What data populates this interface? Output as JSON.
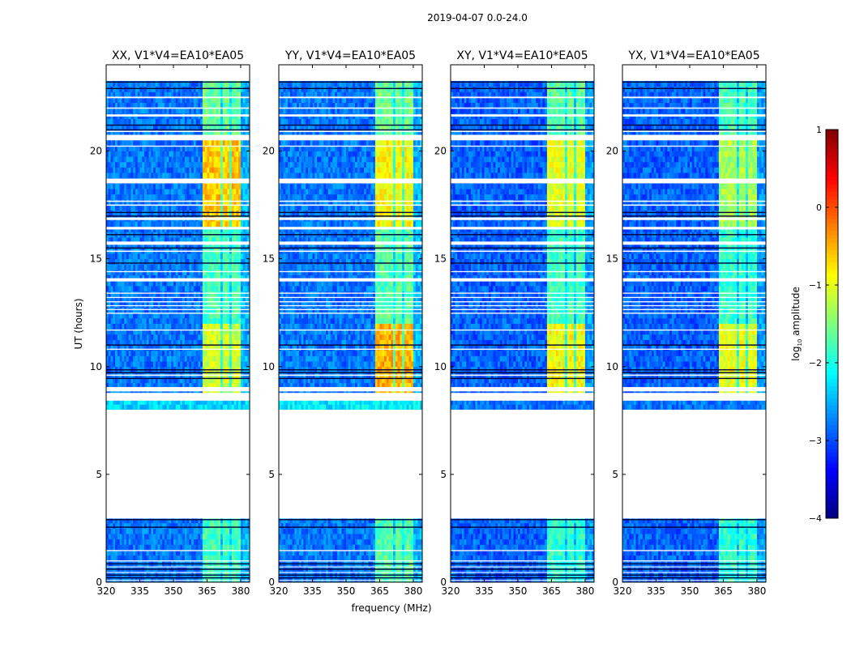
{
  "chart_data": {
    "type": "heatmap",
    "title": "2019-04-07 0.0-24.0",
    "xlabel": "frequency (MHz)",
    "ylabel": "UT (hours)",
    "colorbar_label_main": "log",
    "colorbar_label_sub": "10",
    "colorbar_label_tail": " amplitude",
    "colormap": "jet",
    "clim": [
      -4,
      1
    ],
    "colorbar_ticks": [
      1,
      0,
      -1,
      -2,
      -3,
      -4
    ],
    "colorbar_tick_labels": [
      "1",
      "0",
      "−1",
      "−2",
      "−3",
      "−4"
    ],
    "xlim": [
      320,
      384
    ],
    "ylim": [
      0,
      24
    ],
    "x_ticks": [
      320,
      335,
      350,
      365,
      380
    ],
    "x_tick_labels": [
      "320",
      "335",
      "350",
      "365",
      "380"
    ],
    "y_ticks": [
      0,
      5,
      10,
      15,
      20
    ],
    "y_tick_labels": [
      "0",
      "5",
      "10",
      "15",
      "20"
    ],
    "bright_subbands_mhz": [
      [
        363.5,
        367.0
      ],
      [
        367.5,
        371.2
      ],
      [
        371.8,
        375.3
      ],
      [
        375.8,
        380.5
      ]
    ],
    "flagged_time_ranges_white": [
      [
        2.95,
        8.0
      ],
      [
        8.42,
        8.78
      ],
      [
        8.85,
        9.05
      ],
      [
        20.5,
        20.75
      ],
      [
        23.35,
        24.0
      ],
      [
        22.45,
        22.52
      ],
      [
        21.96,
        22.02
      ],
      [
        21.6,
        21.7
      ],
      [
        20.88,
        20.94
      ],
      [
        20.2,
        20.25
      ],
      [
        18.5,
        18.72
      ],
      [
        17.64,
        17.7
      ],
      [
        17.46,
        17.52
      ],
      [
        16.8,
        16.92
      ],
      [
        16.36,
        16.48
      ],
      [
        15.65,
        15.8
      ],
      [
        15.32,
        15.38
      ],
      [
        14.38,
        14.43
      ],
      [
        13.95,
        14.1
      ],
      [
        13.38,
        13.43
      ],
      [
        13.18,
        13.23
      ],
      [
        12.98,
        13.03
      ],
      [
        12.8,
        12.85
      ],
      [
        12.62,
        12.67
      ],
      [
        12.45,
        12.5
      ],
      [
        11.67,
        11.72
      ],
      [
        10.78,
        10.83
      ],
      [
        9.57,
        9.63
      ],
      [
        1.44,
        1.49
      ],
      [
        0.96,
        1.01
      ],
      [
        0.69,
        0.73
      ],
      [
        0.43,
        0.47
      ],
      [
        0.06,
        0.1
      ]
    ],
    "dark_time_lines": [
      23.2,
      22.9,
      21.2,
      20.98,
      17.15,
      16.98,
      16.12,
      15.5,
      14.8,
      11.0,
      9.85,
      9.72,
      9.45,
      2.9,
      2.55,
      0.85,
      0.6,
      0.33,
      0.2
    ],
    "panels": [
      {
        "title": "XX, V1*V4=EA10*EA05",
        "base_level": -2.8,
        "segments": [
          {
            "t": [
              0,
              2.95
            ],
            "band": -1.8
          },
          {
            "t": [
              8.0,
              8.42
            ],
            "band": -2.3,
            "uniform": -2.3
          },
          {
            "t": [
              8.78,
              12.1
            ],
            "band": -1.1
          },
          {
            "t": [
              12.1,
              16.6
            ],
            "band": -1.8
          },
          {
            "t": [
              16.6,
              20.5
            ],
            "band": -0.6
          },
          {
            "t": [
              20.75,
              23.35
            ],
            "band": -1.6
          }
        ]
      },
      {
        "title": "YY, V1*V4=EA10*EA05",
        "base_level": -2.8,
        "segments": [
          {
            "t": [
              0,
              2.95
            ],
            "band": -1.7
          },
          {
            "t": [
              8.0,
              8.42
            ],
            "band": -2.2,
            "uniform": -2.2
          },
          {
            "t": [
              8.78,
              12.1
            ],
            "band": -0.5
          },
          {
            "t": [
              12.1,
              16.6
            ],
            "band": -1.7
          },
          {
            "t": [
              16.6,
              20.5
            ],
            "band": -0.9
          },
          {
            "t": [
              20.75,
              23.35
            ],
            "band": -1.6
          }
        ]
      },
      {
        "title": "XY, V1*V4=EA10*EA05",
        "base_level": -2.9,
        "segments": [
          {
            "t": [
              0,
              2.95
            ],
            "band": -1.9
          },
          {
            "t": [
              8.0,
              8.42
            ],
            "band": -2.8,
            "uniform": -2.8
          },
          {
            "t": [
              8.78,
              12.1
            ],
            "band": -0.9
          },
          {
            "t": [
              12.1,
              16.6
            ],
            "band": -1.8
          },
          {
            "t": [
              16.6,
              20.5
            ],
            "band": -1.0
          },
          {
            "t": [
              20.75,
              23.35
            ],
            "band": -1.7
          }
        ]
      },
      {
        "title": "YX, V1*V4=EA10*EA05",
        "base_level": -2.9,
        "segments": [
          {
            "t": [
              0,
              2.95
            ],
            "band": -1.9
          },
          {
            "t": [
              8.0,
              8.42
            ],
            "band": -2.8,
            "uniform": -2.8
          },
          {
            "t": [
              8.78,
              12.1
            ],
            "band": -1.0
          },
          {
            "t": [
              12.1,
              16.6
            ],
            "band": -1.9
          },
          {
            "t": [
              16.6,
              20.5
            ],
            "band": -1.3
          },
          {
            "t": [
              20.75,
              23.35
            ],
            "band": -1.8
          }
        ]
      }
    ]
  }
}
